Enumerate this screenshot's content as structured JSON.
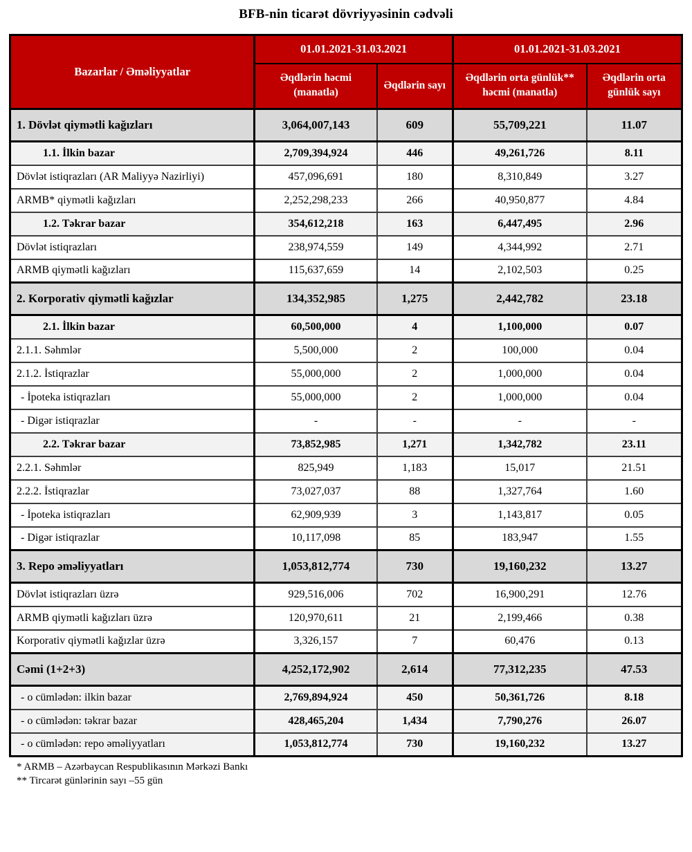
{
  "title": "BFB-nin ticarət dövriyyəsinin cədvəli",
  "colors": {
    "header_bg": "#C00000",
    "header_text": "#FFFFFF",
    "section_row_bg": "#D9D9D9",
    "subsection_row_bg": "#F2F2F2",
    "row_bg": "#FFFFFF",
    "border": "#000000"
  },
  "table": {
    "corner_header": "Bazarlar / Əməliyyatlar",
    "period_headers": [
      "01.01.2021-31.03.2021",
      "01.01.2021-31.03.2021"
    ],
    "column_headers": [
      "Əqdlərin həcmi (manatla)",
      "Əqdlərin sayı",
      "Əqdlərin orta günlük** həcmi (manatla)",
      "Əqdlərin orta günlük sayı"
    ],
    "rows": [
      {
        "label": "1. Dövlət qiymətli kağızları",
        "values": [
          "3,064,007,143",
          "609",
          "55,709,221",
          "11.07"
        ],
        "style": "section"
      },
      {
        "label": "1.1. İlkin bazar",
        "values": [
          "2,709,394,924",
          "446",
          "49,261,726",
          "8.11"
        ],
        "style": "subsection"
      },
      {
        "label": "Dövlət istiqrazları (AR Maliyyə Nazirliyi)",
        "values": [
          "457,096,691",
          "180",
          "8,310,849",
          "3.27"
        ],
        "style": "normal"
      },
      {
        "label": "ARMB* qiymətli kağızları",
        "values": [
          "2,252,298,233",
          "266",
          "40,950,877",
          "4.84"
        ],
        "style": "normal"
      },
      {
        "label": "1.2. Təkrar bazar",
        "values": [
          "354,612,218",
          "163",
          "6,447,495",
          "2.96"
        ],
        "style": "subsection"
      },
      {
        "label": "Dövlət istiqrazları",
        "values": [
          "238,974,559",
          "149",
          "4,344,992",
          "2.71"
        ],
        "style": "normal"
      },
      {
        "label": "ARMB qiymətli kağızları",
        "values": [
          "115,637,659",
          "14",
          "2,102,503",
          "0.25"
        ],
        "style": "normal"
      },
      {
        "label": "2. Korporativ qiymətli kağızlar",
        "values": [
          "134,352,985",
          "1,275",
          "2,442,782",
          "23.18"
        ],
        "style": "section"
      },
      {
        "label": "2.1. İlkin bazar",
        "values": [
          "60,500,000",
          "4",
          "1,100,000",
          "0.07"
        ],
        "style": "subsection"
      },
      {
        "label": "2.1.1. Səhmlər",
        "values": [
          "5,500,000",
          "2",
          "100,000",
          "0.04"
        ],
        "style": "normal"
      },
      {
        "label": "2.1.2. İstiqrazlar",
        "values": [
          "55,000,000",
          "2",
          "1,000,000",
          "0.04"
        ],
        "style": "normal"
      },
      {
        "label": "- İpoteka istiqrazları",
        "values": [
          "55,000,000",
          "2",
          "1,000,000",
          "0.04"
        ],
        "style": "dash"
      },
      {
        "label": "- Digər istiqrazlar",
        "values": [
          "-",
          "-",
          "-",
          "-"
        ],
        "style": "dash"
      },
      {
        "label": "2.2. Təkrar bazar",
        "values": [
          "73,852,985",
          "1,271",
          "1,342,782",
          "23.11"
        ],
        "style": "subsection"
      },
      {
        "label": "2.2.1. Səhmlər",
        "values": [
          "825,949",
          "1,183",
          "15,017",
          "21.51"
        ],
        "style": "normal"
      },
      {
        "label": "2.2.2. İstiqrazlar",
        "values": [
          "73,027,037",
          "88",
          "1,327,764",
          "1.60"
        ],
        "style": "normal"
      },
      {
        "label": "- İpoteka istiqrazları",
        "values": [
          "62,909,939",
          "3",
          "1,143,817",
          "0.05"
        ],
        "style": "dash"
      },
      {
        "label": "- Digər istiqrazlar",
        "values": [
          "10,117,098",
          "85",
          "183,947",
          "1.55"
        ],
        "style": "dash"
      },
      {
        "label": "3. Repo əməliyyatları",
        "values": [
          "1,053,812,774",
          "730",
          "19,160,232",
          "13.27"
        ],
        "style": "section"
      },
      {
        "label": "Dövlət istiqrazları üzrə",
        "values": [
          "929,516,006",
          "702",
          "16,900,291",
          "12.76"
        ],
        "style": "normal"
      },
      {
        "label": "ARMB qiymətli kağızları üzrə",
        "values": [
          "120,970,611",
          "21",
          "2,199,466",
          "0.38"
        ],
        "style": "normal"
      },
      {
        "label": "Korporativ qiymətli kağızlar üzrə",
        "values": [
          "3,326,157",
          "7",
          "60,476",
          "0.13"
        ],
        "style": "normal"
      },
      {
        "label": "Cəmi (1+2+3)",
        "values": [
          "4,252,172,902",
          "2,614",
          "77,312,235",
          "47.53"
        ],
        "style": "section"
      },
      {
        "label": "- o cümlədən: ilkin bazar",
        "values": [
          "2,769,894,924",
          "450",
          "50,361,726",
          "8.18"
        ],
        "style": "totalsub"
      },
      {
        "label": "- o cümlədən: təkrar bazar",
        "values": [
          "428,465,204",
          "1,434",
          "7,790,276",
          "26.07"
        ],
        "style": "totalsub"
      },
      {
        "label": "- o cümlədən: repo əməliyyatları",
        "values": [
          "1,053,812,774",
          "730",
          "19,160,232",
          "13.27"
        ],
        "style": "totalsub"
      }
    ]
  },
  "footnotes": [
    "* ARMB – Azərbaycan Respublikasının Mərkəzi Bankı",
    "** Tircarət günlərinin sayı –55 gün"
  ]
}
